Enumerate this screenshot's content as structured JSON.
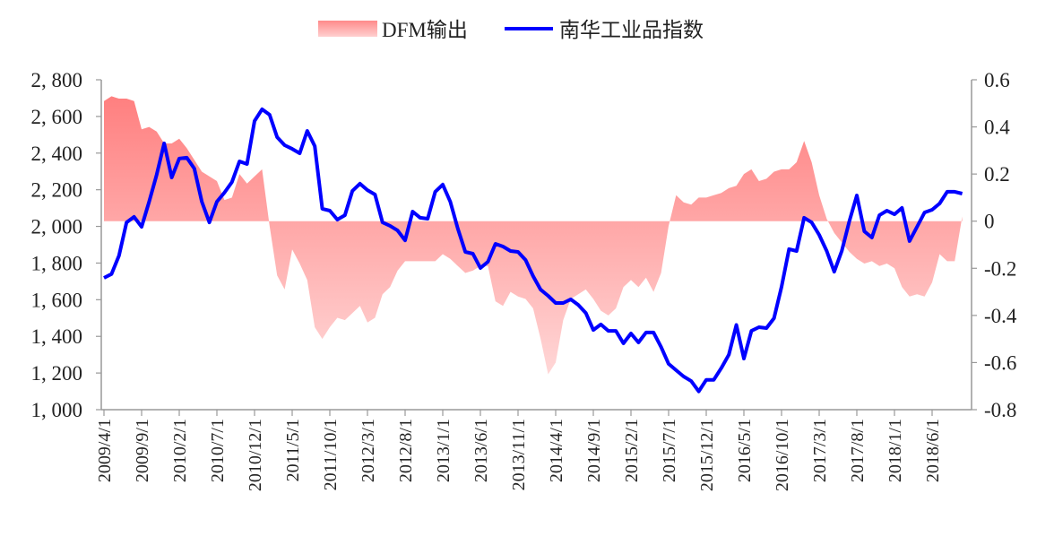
{
  "chart_data": {
    "type": "line+area",
    "legend": {
      "placement": "top",
      "items": [
        {
          "label": "DFM输出",
          "kind": "area"
        },
        {
          "label": "南华工业品指数",
          "kind": "line"
        }
      ]
    },
    "colors": {
      "area_top": "#ff7a7a",
      "area_bottom": "#ffe2e2",
      "line": "#0000ff",
      "axis": "#999999"
    },
    "left_axis": {
      "range": [
        1000,
        2800
      ],
      "ticks": [
        1000,
        1200,
        1400,
        1600,
        1800,
        2000,
        2200,
        2400,
        2600,
        2800
      ],
      "tick_labels": [
        "1, 000",
        "1, 200",
        "1, 400",
        "1, 600",
        "1, 800",
        "2, 000",
        "2, 200",
        "2, 400",
        "2, 600",
        "2, 800"
      ],
      "series": "南华工业品指数"
    },
    "right_axis": {
      "range": [
        -0.8,
        0.6
      ],
      "ticks": [
        -0.8,
        -0.6,
        -0.4,
        -0.2,
        0,
        0.2,
        0.4,
        0.6
      ],
      "tick_labels": [
        "-0.8",
        "-0.6",
        "-0.4",
        "-0.2",
        "0",
        "0.2",
        "0.4",
        "0.6"
      ],
      "series": "DFM输出"
    },
    "x": {
      "start": "2009/4/1",
      "frequency": "monthly",
      "tick_labels": [
        "2009/4/1",
        "2009/9/1",
        "2010/2/1",
        "2010/7/1",
        "2010/12/1",
        "2011/5/1",
        "2011/10/1",
        "2012/3/1",
        "2012/8/1",
        "2013/1/1",
        "2013/6/1",
        "2013/11/1",
        "2014/4/1",
        "2014/9/1",
        "2015/2/1",
        "2015/7/1",
        "2015/12/1",
        "2016/5/1",
        "2016/10/1",
        "2017/3/1",
        "2017/8/1",
        "2018/1/1",
        "2018/6/1"
      ]
    },
    "grid": false,
    "series": [
      {
        "name": "DFM输出",
        "type": "area",
        "axis": "right",
        "values": [
          0.51,
          0.53,
          0.52,
          0.52,
          0.51,
          0.39,
          0.4,
          0.38,
          0.33,
          0.33,
          0.35,
          0.31,
          0.26,
          0.21,
          0.19,
          0.17,
          0.09,
          0.1,
          0.2,
          0.16,
          0.19,
          0.22,
          -0.02,
          -0.23,
          -0.29,
          -0.12,
          -0.18,
          -0.25,
          -0.45,
          -0.5,
          -0.45,
          -0.41,
          -0.42,
          -0.39,
          -0.36,
          -0.43,
          -0.41,
          -0.31,
          -0.28,
          -0.21,
          -0.17,
          -0.17,
          -0.17,
          -0.17,
          -0.17,
          -0.14,
          -0.16,
          -0.19,
          -0.22,
          -0.21,
          -0.19,
          -0.19,
          -0.34,
          -0.36,
          -0.3,
          -0.32,
          -0.33,
          -0.37,
          -0.5,
          -0.65,
          -0.6,
          -0.42,
          -0.33,
          -0.31,
          -0.29,
          -0.33,
          -0.38,
          -0.4,
          -0.37,
          -0.28,
          -0.25,
          -0.28,
          -0.24,
          -0.3,
          -0.22,
          -0.02,
          0.11,
          0.08,
          0.07,
          0.1,
          0.1,
          0.11,
          0.12,
          0.14,
          0.15,
          0.2,
          0.22,
          0.17,
          0.18,
          0.21,
          0.22,
          0.22,
          0.25,
          0.34,
          0.25,
          0.11,
          0.01,
          -0.05,
          -0.09,
          -0.13,
          -0.16,
          -0.18,
          -0.17,
          -0.19,
          -0.18,
          -0.2,
          -0.28,
          -0.32,
          -0.31,
          -0.32,
          -0.26,
          -0.14,
          -0.17,
          -0.17,
          0.02
        ]
      },
      {
        "name": "南华工业品指数",
        "type": "line",
        "axis": "left",
        "values": [
          1719,
          1740,
          1841,
          2022,
          2052,
          1998,
          2135,
          2282,
          2453,
          2267,
          2370,
          2375,
          2316,
          2135,
          2022,
          2135,
          2184,
          2242,
          2355,
          2340,
          2575,
          2639,
          2609,
          2487,
          2443,
          2423,
          2399,
          2521,
          2438,
          2096,
          2086,
          2037,
          2061,
          2194,
          2233,
          2198,
          2174,
          2022,
          2003,
          1978,
          1924,
          2081,
          2047,
          2042,
          2189,
          2228,
          2135,
          1988,
          1861,
          1851,
          1773,
          1807,
          1905,
          1890,
          1866,
          1861,
          1817,
          1729,
          1655,
          1621,
          1582,
          1582,
          1602,
          1572,
          1528,
          1435,
          1465,
          1430,
          1430,
          1362,
          1416,
          1367,
          1421,
          1421,
          1342,
          1250,
          1215,
          1181,
          1156,
          1100,
          1163,
          1163,
          1227,
          1300,
          1462,
          1279,
          1430,
          1450,
          1445,
          1499,
          1670,
          1876,
          1866,
          2047,
          2022,
          1954,
          1866,
          1753,
          1866,
          2027,
          2169,
          1973,
          1939,
          2061,
          2086,
          2066,
          2101,
          1920,
          1998,
          2076,
          2091,
          2125,
          2189,
          2189,
          2179
        ]
      }
    ]
  }
}
